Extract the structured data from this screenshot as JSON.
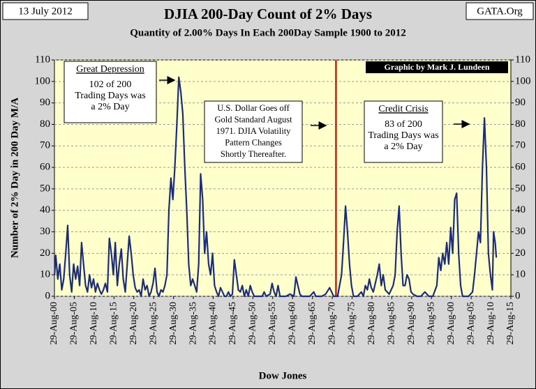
{
  "chart_data": {
    "type": "line",
    "title": "DJIA 200-Day Count of 2% Days",
    "subtitle": "Quantity of 2.00% Days In Each 200Day Sample 1900 to 2012",
    "date_note": "13 July 2012",
    "source": "GATA.Org",
    "credit": "Graphic by Mark J. Lundeen",
    "y_label": "Number of 2% Day in 200 Day M/A",
    "x_label": "Dow Jones",
    "annotations": [
      {
        "heading": "Great Depression",
        "lines": [
          "102 of 200",
          "Trading Days was",
          "a 2% Day"
        ]
      },
      {
        "lines": [
          "U.S. Dollar Goes off",
          "Gold Standard August",
          "1971. DJIA Volatility",
          "Pattern Changes",
          "Shortly Thereafter."
        ]
      },
      {
        "heading": "Credit Crisis",
        "lines": [
          "83 of 200",
          "Trading Days was",
          "a 2% Day"
        ]
      }
    ],
    "vline": {
      "x": 1971.6,
      "color": "#b22a10"
    },
    "color": "#1b2c78",
    "x": [
      1900.7,
      1901,
      1901.5,
      1902,
      1902.5,
      1903,
      1903.5,
      1904,
      1904.5,
      1905,
      1905.5,
      1906,
      1906.5,
      1907,
      1907.5,
      1908,
      1908.5,
      1909,
      1909.5,
      1910,
      1910.5,
      1911,
      1911.5,
      1912,
      1912.5,
      1913,
      1913.5,
      1914,
      1914.5,
      1915,
      1915.5,
      1916,
      1916.5,
      1917,
      1917.5,
      1918,
      1918.5,
      1919,
      1919.5,
      1920,
      1920.5,
      1921,
      1921.5,
      1922,
      1922.5,
      1923,
      1923.5,
      1924,
      1924.5,
      1925,
      1925.5,
      1926,
      1926.5,
      1927,
      1927.5,
      1928,
      1928.5,
      1929,
      1929.5,
      1930,
      1930.5,
      1931,
      1931.5,
      1932,
      1932.5,
      1933,
      1933.5,
      1934,
      1934.5,
      1935,
      1935.5,
      1936,
      1936.5,
      1937,
      1937.5,
      1938,
      1938.5,
      1939,
      1939.5,
      1940,
      1940.5,
      1941,
      1941.5,
      1942,
      1942.5,
      1943,
      1943.5,
      1944,
      1944.5,
      1945,
      1945.5,
      1946,
      1946.5,
      1947,
      1947.5,
      1948,
      1948.5,
      1949,
      1949.5,
      1950,
      1950.5,
      1951,
      1952,
      1953,
      1953.5,
      1954,
      1955,
      1955.5,
      1956,
      1956.5,
      1957,
      1957.5,
      1958,
      1959,
      1960,
      1961,
      1961.5,
      1962,
      1962.5,
      1963,
      1964,
      1965,
      1966,
      1966.5,
      1967,
      1968,
      1969,
      1970,
      1970.5,
      1971,
      1972,
      1973,
      1973.5,
      1974,
      1974.5,
      1975,
      1975.5,
      1976,
      1977,
      1978,
      1978.5,
      1979,
      1979.5,
      1980,
      1980.5,
      1981,
      1982,
      1982.5,
      1983,
      1983.5,
      1984,
      1985,
      1986,
      1986.5,
      1987,
      1987.5,
      1988,
      1988.5,
      1989,
      1989.5,
      1990,
      1990.5,
      1991,
      1992,
      1993,
      1994,
      1995,
      1996,
      1997,
      1997.5,
      1998,
      1998.5,
      1999,
      1999.5,
      2000,
      2000.5,
      2001,
      2001.5,
      2002,
      2002.5,
      2003,
      2003.5,
      2004,
      2005,
      2006,
      2006.5,
      2007,
      2007.5,
      2008,
      2008.5,
      2009,
      2009.5,
      2010,
      2010.5,
      2011,
      2011.3,
      2011.7,
      2012
    ],
    "values": [
      10,
      19,
      8,
      15,
      3,
      8,
      20,
      33,
      10,
      2,
      15,
      8,
      14,
      5,
      25,
      15,
      5,
      2,
      10,
      4,
      8,
      2,
      6,
      3,
      1,
      3,
      6,
      2,
      27,
      20,
      10,
      25,
      5,
      15,
      22,
      8,
      2,
      15,
      28,
      20,
      10,
      4,
      2,
      3,
      0,
      8,
      3,
      5,
      0,
      2,
      6,
      13,
      2,
      0,
      3,
      2,
      5,
      10,
      40,
      55,
      45,
      60,
      80,
      102,
      95,
      85,
      60,
      40,
      15,
      5,
      8,
      5,
      2,
      15,
      57,
      45,
      20,
      30,
      15,
      10,
      20,
      5,
      2,
      0,
      4,
      2,
      0,
      0,
      2,
      0,
      1,
      17,
      10,
      3,
      2,
      5,
      0,
      3,
      0,
      5,
      2,
      0,
      0,
      0,
      2,
      0,
      1,
      6,
      2,
      0,
      5,
      0,
      0,
      0,
      1,
      0,
      9,
      5,
      1,
      0,
      0,
      0,
      2,
      0,
      0,
      0,
      1,
      4,
      2,
      0,
      0,
      10,
      25,
      42,
      30,
      15,
      5,
      0,
      0,
      2,
      0,
      5,
      3,
      8,
      4,
      2,
      10,
      15,
      5,
      10,
      3,
      1,
      5,
      10,
      30,
      42,
      20,
      5,
      5,
      10,
      8,
      2,
      1,
      0,
      0,
      2,
      0,
      0,
      5,
      18,
      12,
      20,
      15,
      25,
      15,
      32,
      20,
      45,
      48,
      20,
      5,
      0,
      0,
      0,
      2,
      10,
      20,
      30,
      25,
      60,
      83,
      60,
      20,
      10,
      3,
      30,
      25,
      18
    ],
    "xlim": [
      1900.66,
      2015.66
    ],
    "xticks": [
      {
        "value": 1900.66,
        "label": "29-Aug-00"
      },
      {
        "value": 1905.66,
        "label": "29-Aug-05"
      },
      {
        "value": 1910.66,
        "label": "29-Aug-10"
      },
      {
        "value": 1915.66,
        "label": "29-Aug-15"
      },
      {
        "value": 1920.66,
        "label": "29-Aug-20"
      },
      {
        "value": 1925.66,
        "label": "29-Aug-25"
      },
      {
        "value": 1930.66,
        "label": "29-Aug-30"
      },
      {
        "value": 1935.66,
        "label": "29-Aug-35"
      },
      {
        "value": 1940.66,
        "label": "29-Aug-40"
      },
      {
        "value": 1945.66,
        "label": "29-Aug-45"
      },
      {
        "value": 1950.66,
        "label": "29-Aug-50"
      },
      {
        "value": 1955.66,
        "label": "29-Aug-55"
      },
      {
        "value": 1960.66,
        "label": "29-Aug-60"
      },
      {
        "value": 1965.66,
        "label": "29-Aug-65"
      },
      {
        "value": 1970.66,
        "label": "29-Aug-70"
      },
      {
        "value": 1975.66,
        "label": "29-Aug-75"
      },
      {
        "value": 1980.66,
        "label": "29-Aug-80"
      },
      {
        "value": 1985.66,
        "label": "29-Aug-85"
      },
      {
        "value": 1990.66,
        "label": "29-Aug-90"
      },
      {
        "value": 1995.66,
        "label": "29-Aug-95"
      },
      {
        "value": 2000.66,
        "label": "29-Aug-00"
      },
      {
        "value": 2005.66,
        "label": "29-Aug-05"
      },
      {
        "value": 2010.66,
        "label": "29-Aug-10"
      },
      {
        "value": 2015.66,
        "label": "29-Aug-15"
      }
    ],
    "ylim": [
      0,
      110
    ],
    "yticks": [
      0,
      10,
      20,
      30,
      40,
      50,
      60,
      70,
      80,
      90,
      100,
      110
    ],
    "y2lim": [
      0,
      110
    ],
    "y2ticks": [
      0,
      10,
      20,
      30,
      40,
      50,
      60,
      70,
      80,
      90,
      100,
      110
    ],
    "grid": true
  }
}
